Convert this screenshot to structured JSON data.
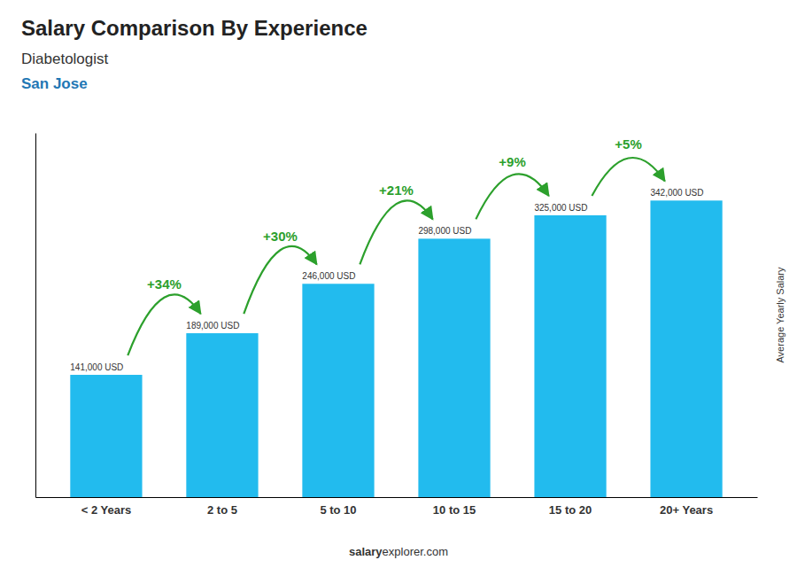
{
  "chart_data": {
    "type": "bar",
    "title": "Salary Comparison By Experience",
    "subtitle": [
      "Diabetologist",
      "San Jose"
    ],
    "ylabel": "Average Yearly Salary",
    "categories": [
      "< 2 Years",
      "2 to 5",
      "5 to 10",
      "10 to 15",
      "15 to 20",
      "20+ Years"
    ],
    "values": [
      141000,
      189000,
      246000,
      298000,
      325000,
      342000
    ],
    "value_labels": [
      "141,000 USD",
      "189,000 USD",
      "246,000 USD",
      "298,000 USD",
      "325,000 USD",
      "342,000 USD"
    ],
    "data_labels": true,
    "color": "#22bbee",
    "ylim": [
      0,
      420000
    ],
    "tick_labels": "x",
    "annotations": [
      {
        "text": "+34%"
      },
      {
        "text": "+30%"
      },
      {
        "text": "+21%"
      },
      {
        "text": "+9%"
      },
      {
        "text": "+5%"
      }
    ],
    "footer": [
      "salary",
      "explorer.com"
    ]
  }
}
